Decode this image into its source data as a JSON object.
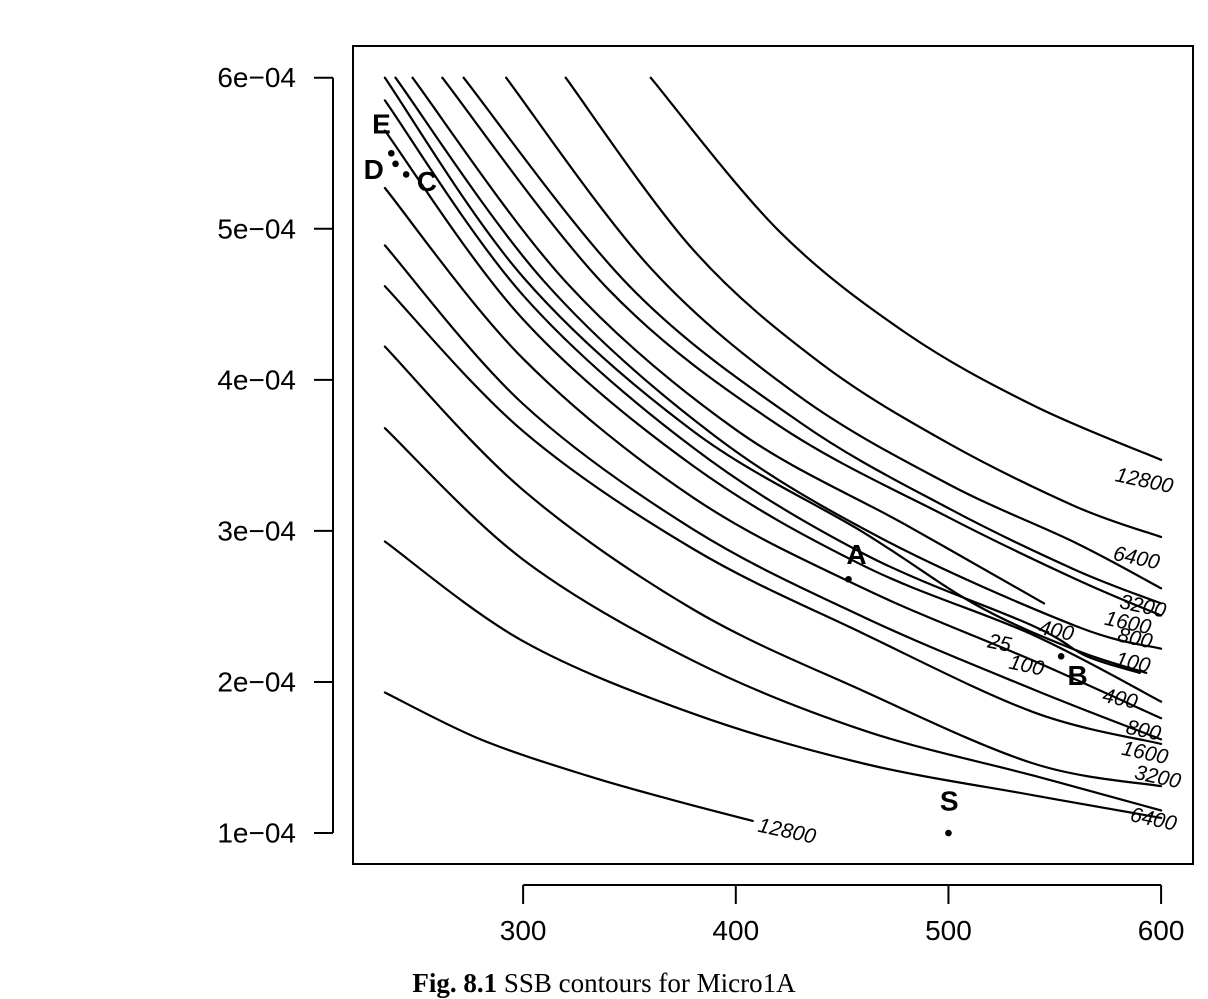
{
  "chart_data": {
    "type": "contour",
    "xlim": [
      220,
      615
    ],
    "ylim": [
      7.95e-05,
      0.000621
    ],
    "x_ticks": [
      {
        "value": 300,
        "label": "300"
      },
      {
        "value": 400,
        "label": "400"
      },
      {
        "value": 500,
        "label": "500"
      },
      {
        "value": 600,
        "label": "600"
      }
    ],
    "y_ticks": [
      {
        "value": 0.0001,
        "label": "1e−04"
      },
      {
        "value": 0.0002,
        "label": "2e−04"
      },
      {
        "value": 0.0003,
        "label": "3e−04"
      },
      {
        "value": 0.0004,
        "label": "4e−04"
      },
      {
        "value": 0.0005,
        "label": "5e−04"
      },
      {
        "value": 0.0006,
        "label": "6e−04"
      }
    ],
    "grid": false,
    "upper_contours": [
      {
        "level": "12800",
        "points": [
          [
            360,
            0.0006
          ],
          [
            420,
            0.000499
          ],
          [
            480,
            0.000431
          ],
          [
            540,
            0.000383
          ],
          [
            600,
            0.000347
          ]
        ],
        "label": {
          "text": "12800",
          "x": 578,
          "y": 0.000333
        }
      },
      {
        "level": "6400",
        "points": [
          [
            320,
            0.0006
          ],
          [
            380,
            0.000486
          ],
          [
            440,
            0.000411
          ],
          [
            500,
            0.000358
          ],
          [
            560,
            0.000316
          ],
          [
            600,
            0.000296
          ]
        ],
        "label": {
          "text": "6400",
          "x": 577,
          "y": 0.000281
        }
      },
      {
        "level": "3200",
        "points": [
          [
            292,
            0.0006
          ],
          [
            360,
            0.000474
          ],
          [
            430,
            0.000389
          ],
          [
            500,
            0.000331
          ],
          [
            560,
            0.000292
          ],
          [
            600,
            0.000262
          ]
        ],
        "label": {
          "text": "3200",
          "x": 580,
          "y": 0.000249
        }
      },
      {
        "level": "1600",
        "points": [
          [
            272,
            0.0006
          ],
          [
            350,
            0.000462
          ],
          [
            430,
            0.000372
          ],
          [
            500,
            0.000315
          ],
          [
            560,
            0.000274
          ],
          [
            600,
            0.000252
          ]
        ],
        "label": {
          "text": "1600",
          "x": 573,
          "y": 0.000238
        }
      },
      {
        "level": "800",
        "points": [
          [
            262,
            0.0006
          ],
          [
            340,
            0.00046
          ],
          [
            420,
            0.00037
          ],
          [
            500,
            0.000309
          ],
          [
            560,
            0.000268
          ],
          [
            600,
            0.000244
          ]
        ],
        "label": {
          "text": "800",
          "x": 579,
          "y": 0.000227
        }
      },
      {
        "level": "400",
        "points": [
          [
            248,
            0.0006
          ],
          [
            320,
            0.000465
          ],
          [
            400,
            0.000367
          ],
          [
            480,
            0.000304
          ],
          [
            545,
            0.000252
          ]
        ],
        "label": {
          "text": "400",
          "x": 542,
          "y": 0.000232
        }
      },
      {
        "level": "100",
        "points": [
          [
            240,
            0.0006
          ],
          [
            310,
            0.000465
          ],
          [
            390,
            0.000363
          ],
          [
            470,
            0.000294
          ],
          [
            560,
            0.000237
          ],
          [
            600,
            0.000222
          ]
        ],
        "label": {
          "text": "100",
          "x": 578,
          "y": 0.000211
        }
      },
      {
        "level": "25",
        "points": [
          [
            235,
            0.0006
          ],
          [
            300,
            0.000468
          ],
          [
            380,
            0.000366
          ],
          [
            460,
            0.000299
          ],
          [
            513,
            0.000251
          ],
          [
            560,
            0.000221
          ],
          [
            593,
            0.000206
          ]
        ],
        "label": {
          "text": "25",
          "x": 518,
          "y": 0.000223
        }
      }
    ],
    "lower_contours": [
      {
        "level": "100",
        "points": [
          [
            235,
            0.000585
          ],
          [
            300,
            0.000456
          ],
          [
            380,
            0.000355
          ],
          [
            460,
            0.000285
          ],
          [
            540,
            0.000237
          ],
          [
            565,
            0.000217
          ],
          [
            590,
            0.000206
          ]
        ],
        "label": {
          "text": "100",
          "x": 528,
          "y": 0.000209
        }
      },
      {
        "level": "400",
        "points": [
          [
            235,
            0.000565
          ],
          [
            300,
            0.00044
          ],
          [
            380,
            0.000343
          ],
          [
            460,
            0.000277
          ],
          [
            540,
            0.000231
          ],
          [
            600,
            0.000187
          ]
        ],
        "label": {
          "text": "400",
          "x": 572,
          "y": 0.000187
        }
      },
      {
        "level": "800",
        "points": [
          [
            235,
            0.000527
          ],
          [
            300,
            0.000414
          ],
          [
            380,
            0.000322
          ],
          [
            460,
            0.000262
          ],
          [
            540,
            0.000214
          ],
          [
            600,
            0.000176
          ]
        ],
        "label": {
          "text": "800",
          "x": 583,
          "y": 0.000166
        }
      },
      {
        "level": "1600",
        "points": [
          [
            235,
            0.000489
          ],
          [
            300,
            0.000384
          ],
          [
            380,
            0.000301
          ],
          [
            460,
            0.000243
          ],
          [
            540,
            0.000195
          ],
          [
            600,
            0.000162
          ]
        ],
        "label": {
          "text": "1600",
          "x": 581,
          "y": 0.000152
        }
      },
      {
        "level": "3200",
        "points": [
          [
            235,
            0.000462
          ],
          [
            300,
            0.000366
          ],
          [
            380,
            0.000288
          ],
          [
            460,
            0.000232
          ],
          [
            540,
            0.00018
          ],
          [
            600,
            0.000159
          ]
        ],
        "label": {
          "text": "3200",
          "x": 587,
          "y": 0.000136
        }
      },
      {
        "level": "6400",
        "points": [
          [
            235,
            0.000422
          ],
          [
            300,
            0.000327
          ],
          [
            380,
            0.000248
          ],
          [
            460,
            0.000194
          ],
          [
            540,
            0.000146
          ],
          [
            600,
            0.000131
          ]
        ],
        "label": {
          "text": "6400",
          "x": 585,
          "y": 0.000108
        }
      },
      {
        "level": "12800",
        "points": [
          [
            235,
            0.000368
          ],
          [
            300,
            0.000281
          ],
          [
            380,
            0.000214
          ],
          [
            460,
            0.000168
          ],
          [
            540,
            0.000138
          ],
          [
            600,
            0.000115
          ]
        ],
        "label": {
          "text": "12800",
          "x": 0,
          "y": 0
        }
      },
      {
        "level": "",
        "points": [
          [
            235,
            0.000293
          ],
          [
            300,
            0.000227
          ],
          [
            380,
            0.000179
          ],
          [
            460,
            0.000146
          ],
          [
            540,
            0.000125
          ],
          [
            600,
            0.00011
          ]
        ],
        "label": {
          "text": "",
          "x": 0,
          "y": 0
        }
      },
      {
        "level": "12800",
        "points": [
          [
            235,
            0.000193
          ],
          [
            280,
            0.000162
          ],
          [
            330,
            0.000138
          ],
          [
            370,
            0.000122
          ],
          [
            408,
            0.000108
          ]
        ],
        "label": {
          "text": "12800",
          "x": 410,
          "y": 0.000101
        }
      }
    ],
    "points": [
      {
        "label": "A",
        "x": 453,
        "y": 0.000268,
        "label_x": 452,
        "label_y": 0.000278
      },
      {
        "label": "B",
        "x": 553,
        "y": 0.000217,
        "label_x": 556,
        "label_y": 0.000198
      },
      {
        "label": "C",
        "x": 245,
        "y": 0.000536,
        "label_x": 250,
        "label_y": 0.000525
      },
      {
        "label": "D",
        "x": 240,
        "y": 0.000543,
        "label_x": 225,
        "label_y": 0.000533
      },
      {
        "label": "E",
        "x": 238,
        "y": 0.00055,
        "label_x": 229,
        "label_y": 0.000563
      },
      {
        "label": "S",
        "x": 500,
        "y": 0.0001,
        "label_x": 496,
        "label_y": 0.000115
      }
    ]
  },
  "caption": {
    "figure_number": "Fig. 8.1",
    "text": "SSB contours for Micro1A"
  }
}
